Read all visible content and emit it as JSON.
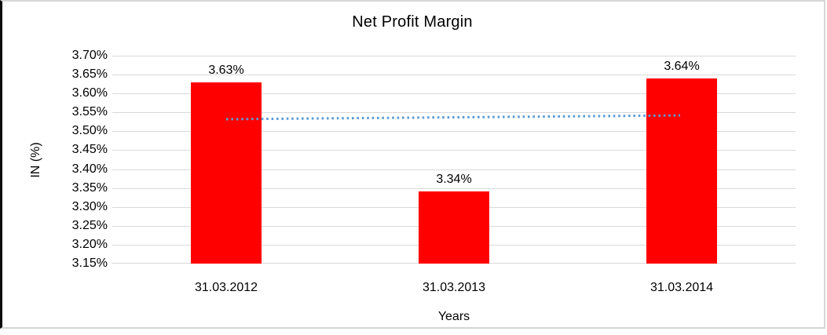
{
  "chart_data": {
    "type": "bar",
    "title": "Net Profit Margin",
    "xlabel": "Years",
    "ylabel": "IN (%)",
    "categories": [
      "31.03.2012",
      "31.03.2013",
      "31.03.2014"
    ],
    "values": [
      3.63,
      3.34,
      3.64
    ],
    "value_labels": [
      "3.63%",
      "3.34%",
      "3.64%"
    ],
    "ylim": [
      3.15,
      3.7
    ],
    "y_tick_step": 0.05,
    "y_tick_labels": [
      "3.70%",
      "3.65%",
      "3.60%",
      "3.55%",
      "3.50%",
      "3.45%",
      "3.40%",
      "3.35%",
      "3.30%",
      "3.25%",
      "3.20%",
      "3.15%"
    ],
    "grid": true,
    "legend": "none",
    "bar_color": "#ff0000",
    "gridline_color": "#d9d9d9",
    "trendline": {
      "type": "linear",
      "style": "dotted",
      "color": "#5b9bd5",
      "start_value": 3.532,
      "end_value": 3.542
    }
  }
}
